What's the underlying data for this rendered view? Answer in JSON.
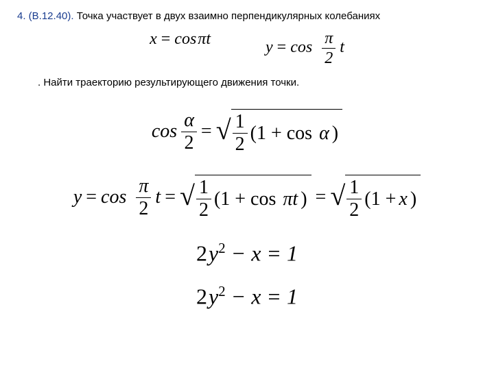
{
  "problem": {
    "number": "4. (В.12.40).",
    "text": "Точка участвует в двух взаимно перпендикулярных колебаниях",
    "task": ". Найти траекторию результирующего движения точки."
  },
  "equations": {
    "eq1_lhs": "x",
    "eq1_rhs_cos": "cos",
    "eq1_rhs_arg": "πt",
    "eq2_lhs": "y",
    "eq2_rhs_cos": "cos",
    "eq2_frac_num": "π",
    "eq2_frac_den": "2",
    "eq2_rhs_end": "t",
    "halfangle_cos": "cos",
    "halfangle_frac_num": "α",
    "halfangle_frac_den": "2",
    "halfangle_sqrt_frac_num": "1",
    "halfangle_sqrt_frac_den": "2",
    "halfangle_sqrt_paren": "(1 + cos",
    "halfangle_sqrt_alpha": "α",
    "halfangle_sqrt_close": ")",
    "deriv_lhs": "y",
    "deriv_cos": "cos",
    "deriv_frac_num": "π",
    "deriv_frac_den": "2",
    "deriv_t": "t",
    "deriv_sqrt_frac_num": "1",
    "deriv_sqrt_frac_den": "2",
    "deriv_sqrt_paren": "(1 + cos",
    "deriv_sqrt_pt": "πt",
    "deriv_sqrt_close": ")",
    "deriv_sqrt2_frac_num": "1",
    "deriv_sqrt2_frac_den": "2",
    "deriv_sqrt2_paren": "(1 + ",
    "deriv_sqrt2_x": "x",
    "deriv_sqrt2_close": ")",
    "final1": "2",
    "final1_y": "y",
    "final1_exp": "2",
    "final1_rest": " − x = 1",
    "final2": "2",
    "final2_y": "y",
    "final2_exp": "2",
    "final2_rest": " − x = 1"
  },
  "colors": {
    "text": "#000000",
    "accent": "#1a3d8f",
    "background": "#ffffff"
  }
}
